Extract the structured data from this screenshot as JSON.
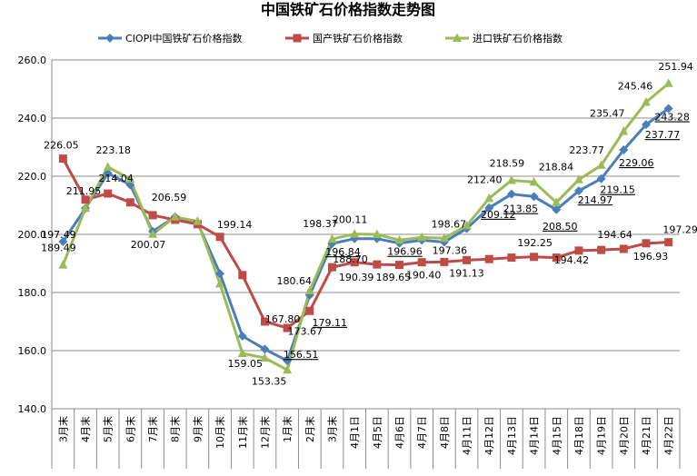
{
  "chart_data": {
    "type": "line",
    "title": "中国铁矿石价格指数走势图",
    "xlabel": "",
    "ylabel": "",
    "ylim": [
      140,
      260
    ],
    "yticks": [
      "140.0",
      "160.0",
      "180.0",
      "200.0",
      "220.0",
      "240.0",
      "260.0"
    ],
    "grid": "horizontal",
    "legend_position": "top",
    "categories": [
      "3月末",
      "4月末",
      "5月末",
      "6月末",
      "7月末",
      "8月末",
      "9月末",
      "10月末",
      "11月末",
      "12月末",
      "1月末",
      "2月末",
      "3月末",
      "4月1日",
      "4月5日",
      "4月6日",
      "4月7日",
      "4月8日",
      "4月11日",
      "4月12日",
      "4月13日",
      "4月14日",
      "4月15日",
      "4月18日",
      "4月19日",
      "4月20日",
      "4月21日",
      "4月22日"
    ],
    "series": [
      {
        "name": "CIOPI中国铁矿石价格指数",
        "color": "#4a7ebb",
        "marker": "diamond",
        "values": [
          197.49,
          209,
          221,
          217,
          201,
          206,
          204,
          186.5,
          165,
          160.5,
          156.51,
          179.11,
          196.84,
          198.5,
          198.5,
          196.96,
          198,
          197.36,
          202,
          209.12,
          213.85,
          213,
          208.5,
          214.97,
          219.15,
          229.06,
          237.77,
          243.28
        ]
      },
      {
        "name": "国产铁矿石价格指数",
        "color": "#be4b48",
        "marker": "square",
        "values": [
          226.05,
          211.95,
          214.04,
          211,
          206.59,
          205,
          203.5,
          199.14,
          186,
          170,
          167.8,
          173.67,
          188.7,
          190.39,
          189.65,
          189.5,
          190.4,
          190.5,
          191.13,
          191.5,
          192,
          192.25,
          192,
          194.42,
          194.64,
          195,
          196.93,
          197.29
        ]
      },
      {
        "name": "进口铁矿石价格指数",
        "color": "#9bbb59",
        "marker": "triangle",
        "values": [
          189.49,
          209,
          223.18,
          219,
          200.07,
          206,
          204.5,
          183,
          159.05,
          157.5,
          153.35,
          180.64,
          198.37,
          200.11,
          200,
          198,
          199,
          198.67,
          203,
          212.4,
          218.59,
          218,
          211,
          218.84,
          223.77,
          235.47,
          245.46,
          251.94
        ]
      }
    ],
    "data_labels": [
      {
        "series": 0,
        "index": 0,
        "text": "197.49",
        "underline": false
      },
      {
        "series": 0,
        "index": 10,
        "text": "156.51",
        "underline": true
      },
      {
        "series": 0,
        "index": 11,
        "text": "179.11",
        "underline": true
      },
      {
        "series": 0,
        "index": 12,
        "text": "196.84",
        "underline": true
      },
      {
        "series": 0,
        "index": 15,
        "text": "196.96",
        "underline": true
      },
      {
        "series": 0,
        "index": 17,
        "text": "197.36",
        "underline": false
      },
      {
        "series": 0,
        "index": 19,
        "text": "209.12",
        "underline": true
      },
      {
        "series": 0,
        "index": 20,
        "text": "213.85",
        "underline": true
      },
      {
        "series": 0,
        "index": 22,
        "text": "208.50",
        "underline": true
      },
      {
        "series": 0,
        "index": 23,
        "text": "214.97",
        "underline": true
      },
      {
        "series": 0,
        "index": 24,
        "text": "219.15",
        "underline": true
      },
      {
        "series": 0,
        "index": 25,
        "text": "229.06",
        "underline": true
      },
      {
        "series": 0,
        "index": 26,
        "text": "237.77",
        "underline": true
      },
      {
        "series": 0,
        "index": 27,
        "text": "243.28",
        "underline": true
      },
      {
        "series": 1,
        "index": 0,
        "text": "226.05",
        "underline": false
      },
      {
        "series": 1,
        "index": 1,
        "text": "211.95",
        "underline": false
      },
      {
        "series": 1,
        "index": 2,
        "text": "214.04",
        "underline": false
      },
      {
        "series": 1,
        "index": 4,
        "text": "206.59",
        "underline": false
      },
      {
        "series": 1,
        "index": 7,
        "text": "199.14",
        "underline": false
      },
      {
        "series": 1,
        "index": 10,
        "text": "167.80",
        "underline": false
      },
      {
        "series": 1,
        "index": 11,
        "text": "173.67",
        "underline": false
      },
      {
        "series": 1,
        "index": 12,
        "text": "188.70",
        "underline": false
      },
      {
        "series": 1,
        "index": 13,
        "text": "190.39",
        "underline": false
      },
      {
        "series": 1,
        "index": 14,
        "text": "189.65",
        "underline": false
      },
      {
        "series": 1,
        "index": 16,
        "text": "190.40",
        "underline": false
      },
      {
        "series": 1,
        "index": 18,
        "text": "191.13",
        "underline": false
      },
      {
        "series": 1,
        "index": 21,
        "text": "192.25",
        "underline": false
      },
      {
        "series": 1,
        "index": 23,
        "text": "194.42",
        "underline": false
      },
      {
        "series": 1,
        "index": 24,
        "text": "194.64",
        "underline": false
      },
      {
        "series": 1,
        "index": 26,
        "text": "196.93",
        "underline": false
      },
      {
        "series": 1,
        "index": 27,
        "text": "197.29",
        "underline": false
      },
      {
        "series": 2,
        "index": 0,
        "text": "189.49",
        "underline": false
      },
      {
        "series": 2,
        "index": 2,
        "text": "223.18",
        "underline": false
      },
      {
        "series": 2,
        "index": 4,
        "text": "200.07",
        "underline": false
      },
      {
        "series": 2,
        "index": 8,
        "text": "159.05",
        "underline": false
      },
      {
        "series": 2,
        "index": 10,
        "text": "153.35",
        "underline": false
      },
      {
        "series": 2,
        "index": 11,
        "text": "180.64",
        "underline": false
      },
      {
        "series": 2,
        "index": 12,
        "text": "198.37",
        "underline": false
      },
      {
        "series": 2,
        "index": 13,
        "text": "200.11",
        "underline": false
      },
      {
        "series": 2,
        "index": 17,
        "text": "198.67",
        "underline": false
      },
      {
        "series": 2,
        "index": 19,
        "text": "212.40",
        "underline": false
      },
      {
        "series": 2,
        "index": 20,
        "text": "218.59",
        "underline": false
      },
      {
        "series": 2,
        "index": 23,
        "text": "218.84",
        "underline": false
      },
      {
        "series": 2,
        "index": 24,
        "text": "223.77",
        "underline": false
      },
      {
        "series": 2,
        "index": 25,
        "text": "235.47",
        "underline": false
      },
      {
        "series": 2,
        "index": 26,
        "text": "245.46",
        "underline": false
      },
      {
        "series": 2,
        "index": 27,
        "text": "251.94",
        "underline": false
      }
    ]
  }
}
